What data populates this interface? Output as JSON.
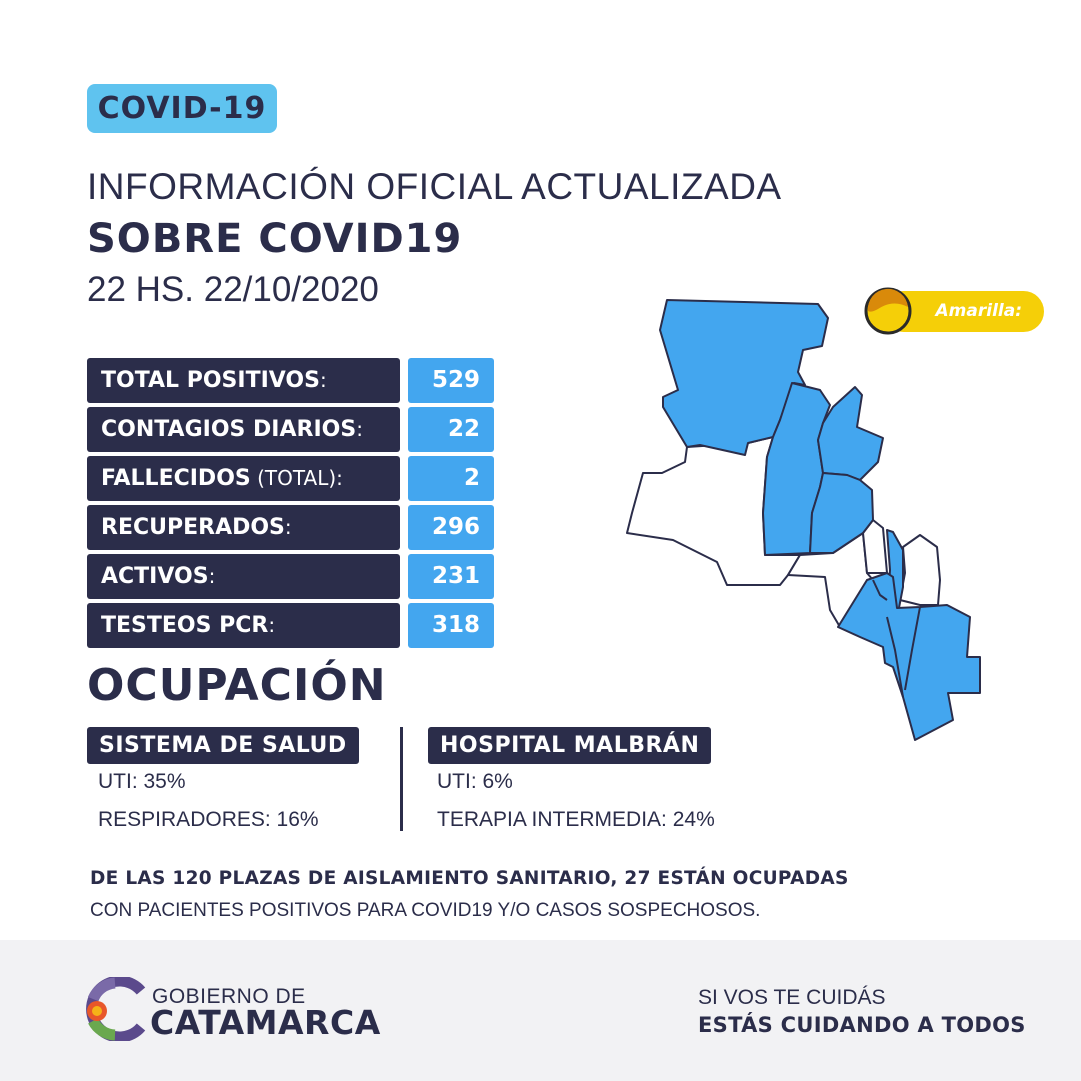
{
  "badge": "COVID-19",
  "header": {
    "line1": "INFORMACIÓN OFICIAL ACTUALIZADA",
    "line2": "SOBRE COVID19",
    "line3": "22 HS. 22/10/2020"
  },
  "stats": [
    {
      "label": "TOTAL POSITIVOS",
      "suffix": "",
      "value": "529"
    },
    {
      "label": "CONTAGIOS DIARIOS",
      "suffix": "",
      "value": "22"
    },
    {
      "label": "FALLECIDOS",
      "suffix": " (TOTAL)",
      "value": "2"
    },
    {
      "label": "RECUPERADOS",
      "suffix": "",
      "value": "296"
    },
    {
      "label": "ACTIVOS",
      "suffix": "",
      "value": "231"
    },
    {
      "label": "TESTEOS PCR",
      "suffix": "",
      "value": "318"
    }
  ],
  "colon": ":",
  "ocupacion": {
    "title": "OCUPACIÓN",
    "sistema": {
      "title": "SISTEMA DE SALUD",
      "lines": [
        "UTI: 35%",
        "RESPIRADORES: 16%"
      ]
    },
    "hospital": {
      "title": "HOSPITAL MALBRÁN",
      "lines": [
        "UTI: 6%",
        "TERAPIA INTERMEDIA: 24%"
      ]
    }
  },
  "note": {
    "bold": "DE LAS 120 PLAZAS DE AISLAMIENTO SANITARIO, 27 ESTÁN OCUPADAS",
    "normal": "CON PACIENTES POSITIVOS PARA COVID19 Y/O CASOS SOSPECHOSOS."
  },
  "alert": {
    "label": "Amarilla:",
    "color": "#f5cf08"
  },
  "map": {
    "highlight_color": "#43a6ef"
  },
  "footer": {
    "logo_top": "GOBIERNO DE",
    "logo_bottom": "CATAMARCA",
    "slogan1": "SI VOS TE CUIDÁS",
    "slogan2": "ESTÁS CUIDANDO A TODOS"
  },
  "colors": {
    "navy": "#2b2d4a",
    "blue": "#43a6ef",
    "light_blue": "#5fc3ef"
  }
}
